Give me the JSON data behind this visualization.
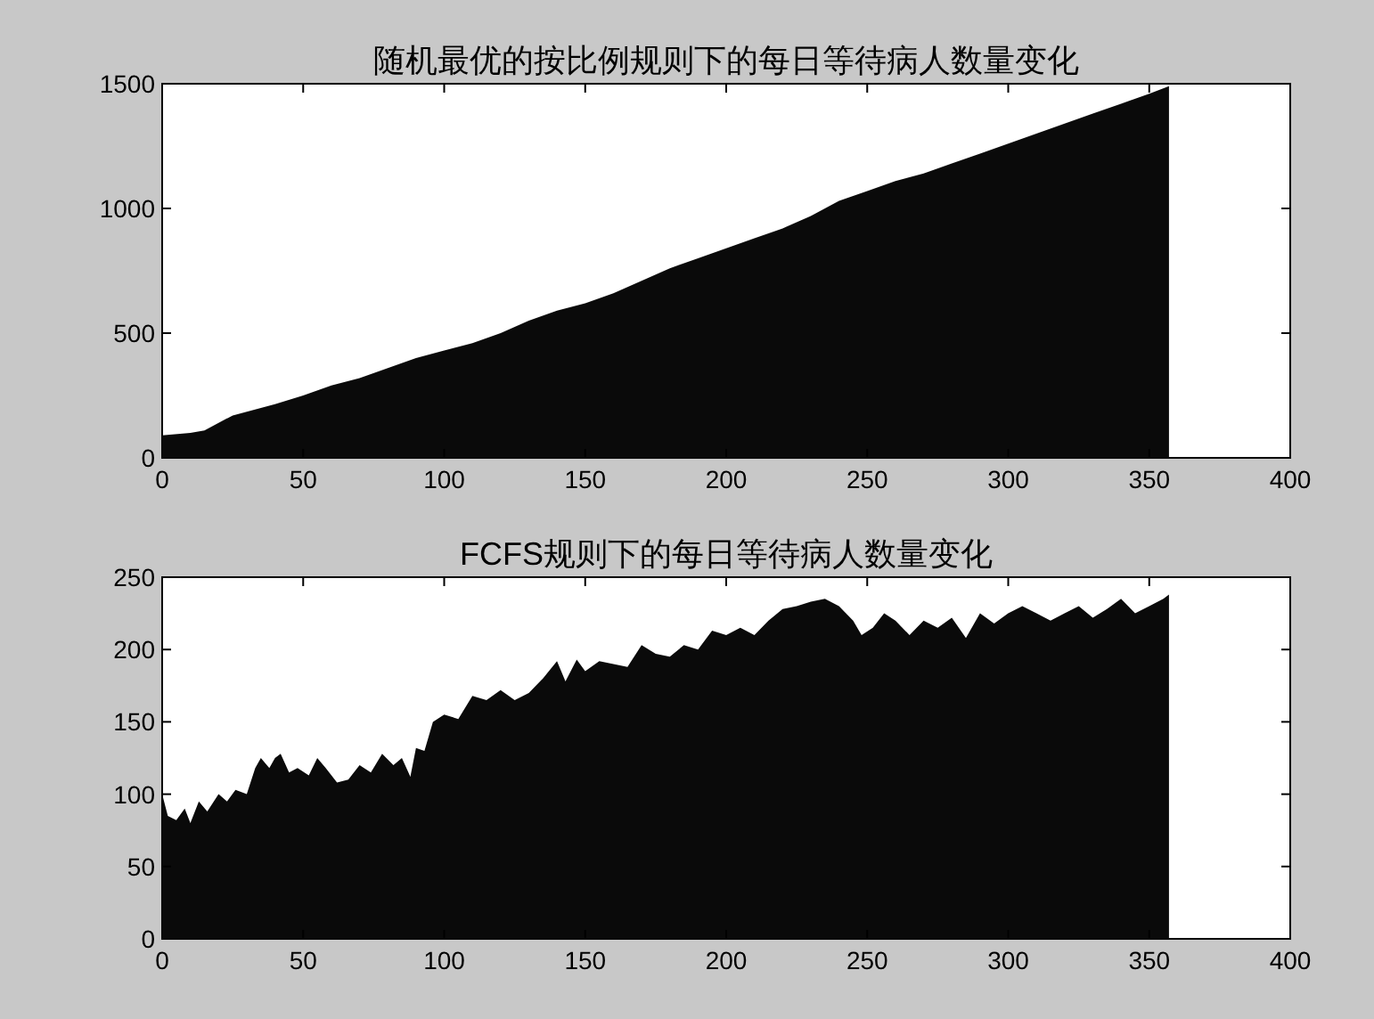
{
  "chart_data": [
    {
      "type": "area",
      "title": "随机最优的按比例规则下的每日等待病人数量变化",
      "color": "#0a0a0a",
      "xlim": [
        0,
        400
      ],
      "xticks": [
        0,
        50,
        100,
        150,
        200,
        250,
        300,
        350,
        400
      ],
      "ylim": [
        0,
        1500
      ],
      "yticks": [
        0,
        500,
        1000,
        1500
      ],
      "x": [
        0,
        10,
        15,
        20,
        25,
        30,
        40,
        50,
        60,
        70,
        80,
        90,
        100,
        110,
        120,
        130,
        140,
        150,
        160,
        170,
        180,
        190,
        200,
        210,
        220,
        230,
        240,
        250,
        260,
        270,
        280,
        290,
        300,
        310,
        320,
        330,
        340,
        350,
        357
      ],
      "values": [
        90,
        100,
        110,
        140,
        170,
        185,
        215,
        250,
        290,
        320,
        360,
        400,
        430,
        460,
        500,
        550,
        590,
        620,
        660,
        710,
        760,
        800,
        840,
        880,
        920,
        970,
        1030,
        1070,
        1110,
        1140,
        1180,
        1220,
        1260,
        1300,
        1340,
        1380,
        1420,
        1460,
        1490
      ]
    },
    {
      "type": "area",
      "title": "FCFS规则下的每日等待病人数量变化",
      "color": "#0a0a0a",
      "xlim": [
        0,
        400
      ],
      "xticks": [
        0,
        50,
        100,
        150,
        200,
        250,
        300,
        350,
        400
      ],
      "ylim": [
        0,
        250
      ],
      "yticks": [
        0,
        50,
        100,
        150,
        200,
        250
      ],
      "x": [
        0,
        2,
        5,
        8,
        10,
        13,
        16,
        20,
        23,
        26,
        30,
        33,
        35,
        38,
        40,
        42,
        45,
        48,
        52,
        55,
        58,
        62,
        66,
        70,
        74,
        78,
        82,
        85,
        88,
        90,
        93,
        96,
        100,
        105,
        110,
        115,
        120,
        125,
        130,
        135,
        140,
        143,
        147,
        150,
        155,
        160,
        165,
        170,
        175,
        180,
        185,
        190,
        195,
        200,
        205,
        210,
        215,
        220,
        225,
        230,
        235,
        240,
        245,
        248,
        252,
        256,
        260,
        265,
        270,
        275,
        280,
        285,
        290,
        295,
        300,
        305,
        310,
        315,
        320,
        325,
        330,
        335,
        340,
        345,
        350,
        355,
        357
      ],
      "values": [
        100,
        85,
        82,
        90,
        80,
        95,
        88,
        100,
        95,
        103,
        100,
        118,
        125,
        118,
        125,
        128,
        115,
        118,
        113,
        125,
        118,
        108,
        110,
        120,
        115,
        128,
        120,
        125,
        112,
        132,
        130,
        150,
        155,
        152,
        168,
        165,
        172,
        165,
        170,
        180,
        192,
        178,
        193,
        185,
        192,
        190,
        188,
        203,
        197,
        195,
        203,
        200,
        213,
        210,
        215,
        210,
        220,
        228,
        230,
        233,
        235,
        230,
        220,
        210,
        215,
        225,
        220,
        210,
        220,
        215,
        222,
        208,
        225,
        218,
        225,
        230,
        225,
        220,
        225,
        230,
        222,
        228,
        235,
        225,
        230,
        235,
        238
      ]
    }
  ]
}
